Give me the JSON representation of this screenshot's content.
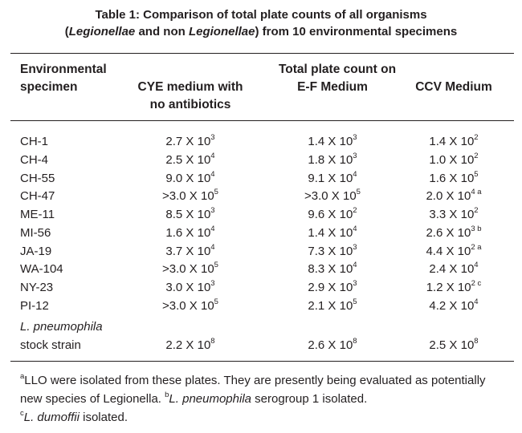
{
  "title": {
    "line1": "Table 1: Comparison of total plate counts of all organisms",
    "line2_pre": "(",
    "line2_em1": "Legionellae",
    "line2_mid": " and non ",
    "line2_em2": "Legionellae",
    "line2_post": ") from 10 environmental specimens"
  },
  "header": {
    "col0_line1": "Environmental",
    "col0_line2": "specimen",
    "group": "Total plate count on",
    "col1_line1": "CYE medium with",
    "col1_line2": "no antibiotics",
    "col2": "E-F Medium",
    "col3": "CCV Medium"
  },
  "rows": [
    {
      "specimen": "CH-1",
      "cye": {
        "m": "2.7 X 10",
        "e": "3"
      },
      "ef": {
        "m": "1.4 X 10",
        "e": "3"
      },
      "ccv": {
        "m": "1.4 X 10",
        "e": "2"
      }
    },
    {
      "specimen": "CH-4",
      "cye": {
        "m": "2.5 X 10",
        "e": "4"
      },
      "ef": {
        "m": "1.8 X 10",
        "e": "3"
      },
      "ccv": {
        "m": "1.0 X 10",
        "e": "2"
      }
    },
    {
      "specimen": "CH-55",
      "cye": {
        "m": "9.0 X 10",
        "e": "4"
      },
      "ef": {
        "m": "9.1 X 10",
        "e": "4"
      },
      "ccv": {
        "m": "1.6 X 10",
        "e": "5"
      }
    },
    {
      "specimen": "CH-47",
      "cye": {
        "m": ">3.0 X 10",
        "e": "5"
      },
      "ef": {
        "m": ">3.0 X 10",
        "e": "5"
      },
      "ccv": {
        "m": "2.0 X 10",
        "e": "4 a"
      }
    },
    {
      "specimen": "ME-11",
      "cye": {
        "m": "8.5 X 10",
        "e": "3"
      },
      "ef": {
        "m": "9.6 X 10",
        "e": "2"
      },
      "ccv": {
        "m": "3.3 X 10",
        "e": "2"
      }
    },
    {
      "specimen": "MI-56",
      "cye": {
        "m": "1.6 X 10",
        "e": "4"
      },
      "ef": {
        "m": "1.4 X 10",
        "e": "4"
      },
      "ccv": {
        "m": "2.6 X 10",
        "e": "3 b"
      }
    },
    {
      "specimen": "JA-19",
      "cye": {
        "m": "3.7 X 10",
        "e": "4"
      },
      "ef": {
        "m": "7.3 X 10",
        "e": "3"
      },
      "ccv": {
        "m": "4.4 X 10",
        "e": "2 a"
      }
    },
    {
      "specimen": "WA-104",
      "cye": {
        "m": ">3.0 X 10",
        "e": "5"
      },
      "ef": {
        "m": "8.3 X 10",
        "e": "4"
      },
      "ccv": {
        "m": "2.4 X 10",
        "e": "4"
      }
    },
    {
      "specimen": "NY-23",
      "cye": {
        "m": "3.0 X 10",
        "e": "3"
      },
      "ef": {
        "m": "2.9 X 10",
        "e": "3"
      },
      "ccv": {
        "m": "1.2 X 10",
        "e": "2 c"
      }
    },
    {
      "specimen": "PI-12",
      "cye": {
        "m": ">3.0 X 10",
        "e": "5"
      },
      "ef": {
        "m": "2.1 X 10",
        "e": "5"
      },
      "ccv": {
        "m": "4.2 X 10",
        "e": "4"
      }
    }
  ],
  "stock": {
    "line1": "L. pneumophila",
    "line2": "stock strain",
    "cye": {
      "m": "2.2 X 10",
      "e": "8"
    },
    "ef": {
      "m": "2.6 X 10",
      "e": "8"
    },
    "ccv": {
      "m": "2.5 X 10",
      "e": "8"
    }
  },
  "footnotes": {
    "a_mark": "a",
    "a_text": "LLO were isolated from these plates. They are presently being evaluated as potentially new species of Legionella. ",
    "b_mark": "b",
    "b_em": "L. pneumophila",
    "b_text": " serogroup 1 isolated.",
    "c_mark": "c",
    "c_em": "L. dumoffii",
    "c_text": " isolated."
  }
}
